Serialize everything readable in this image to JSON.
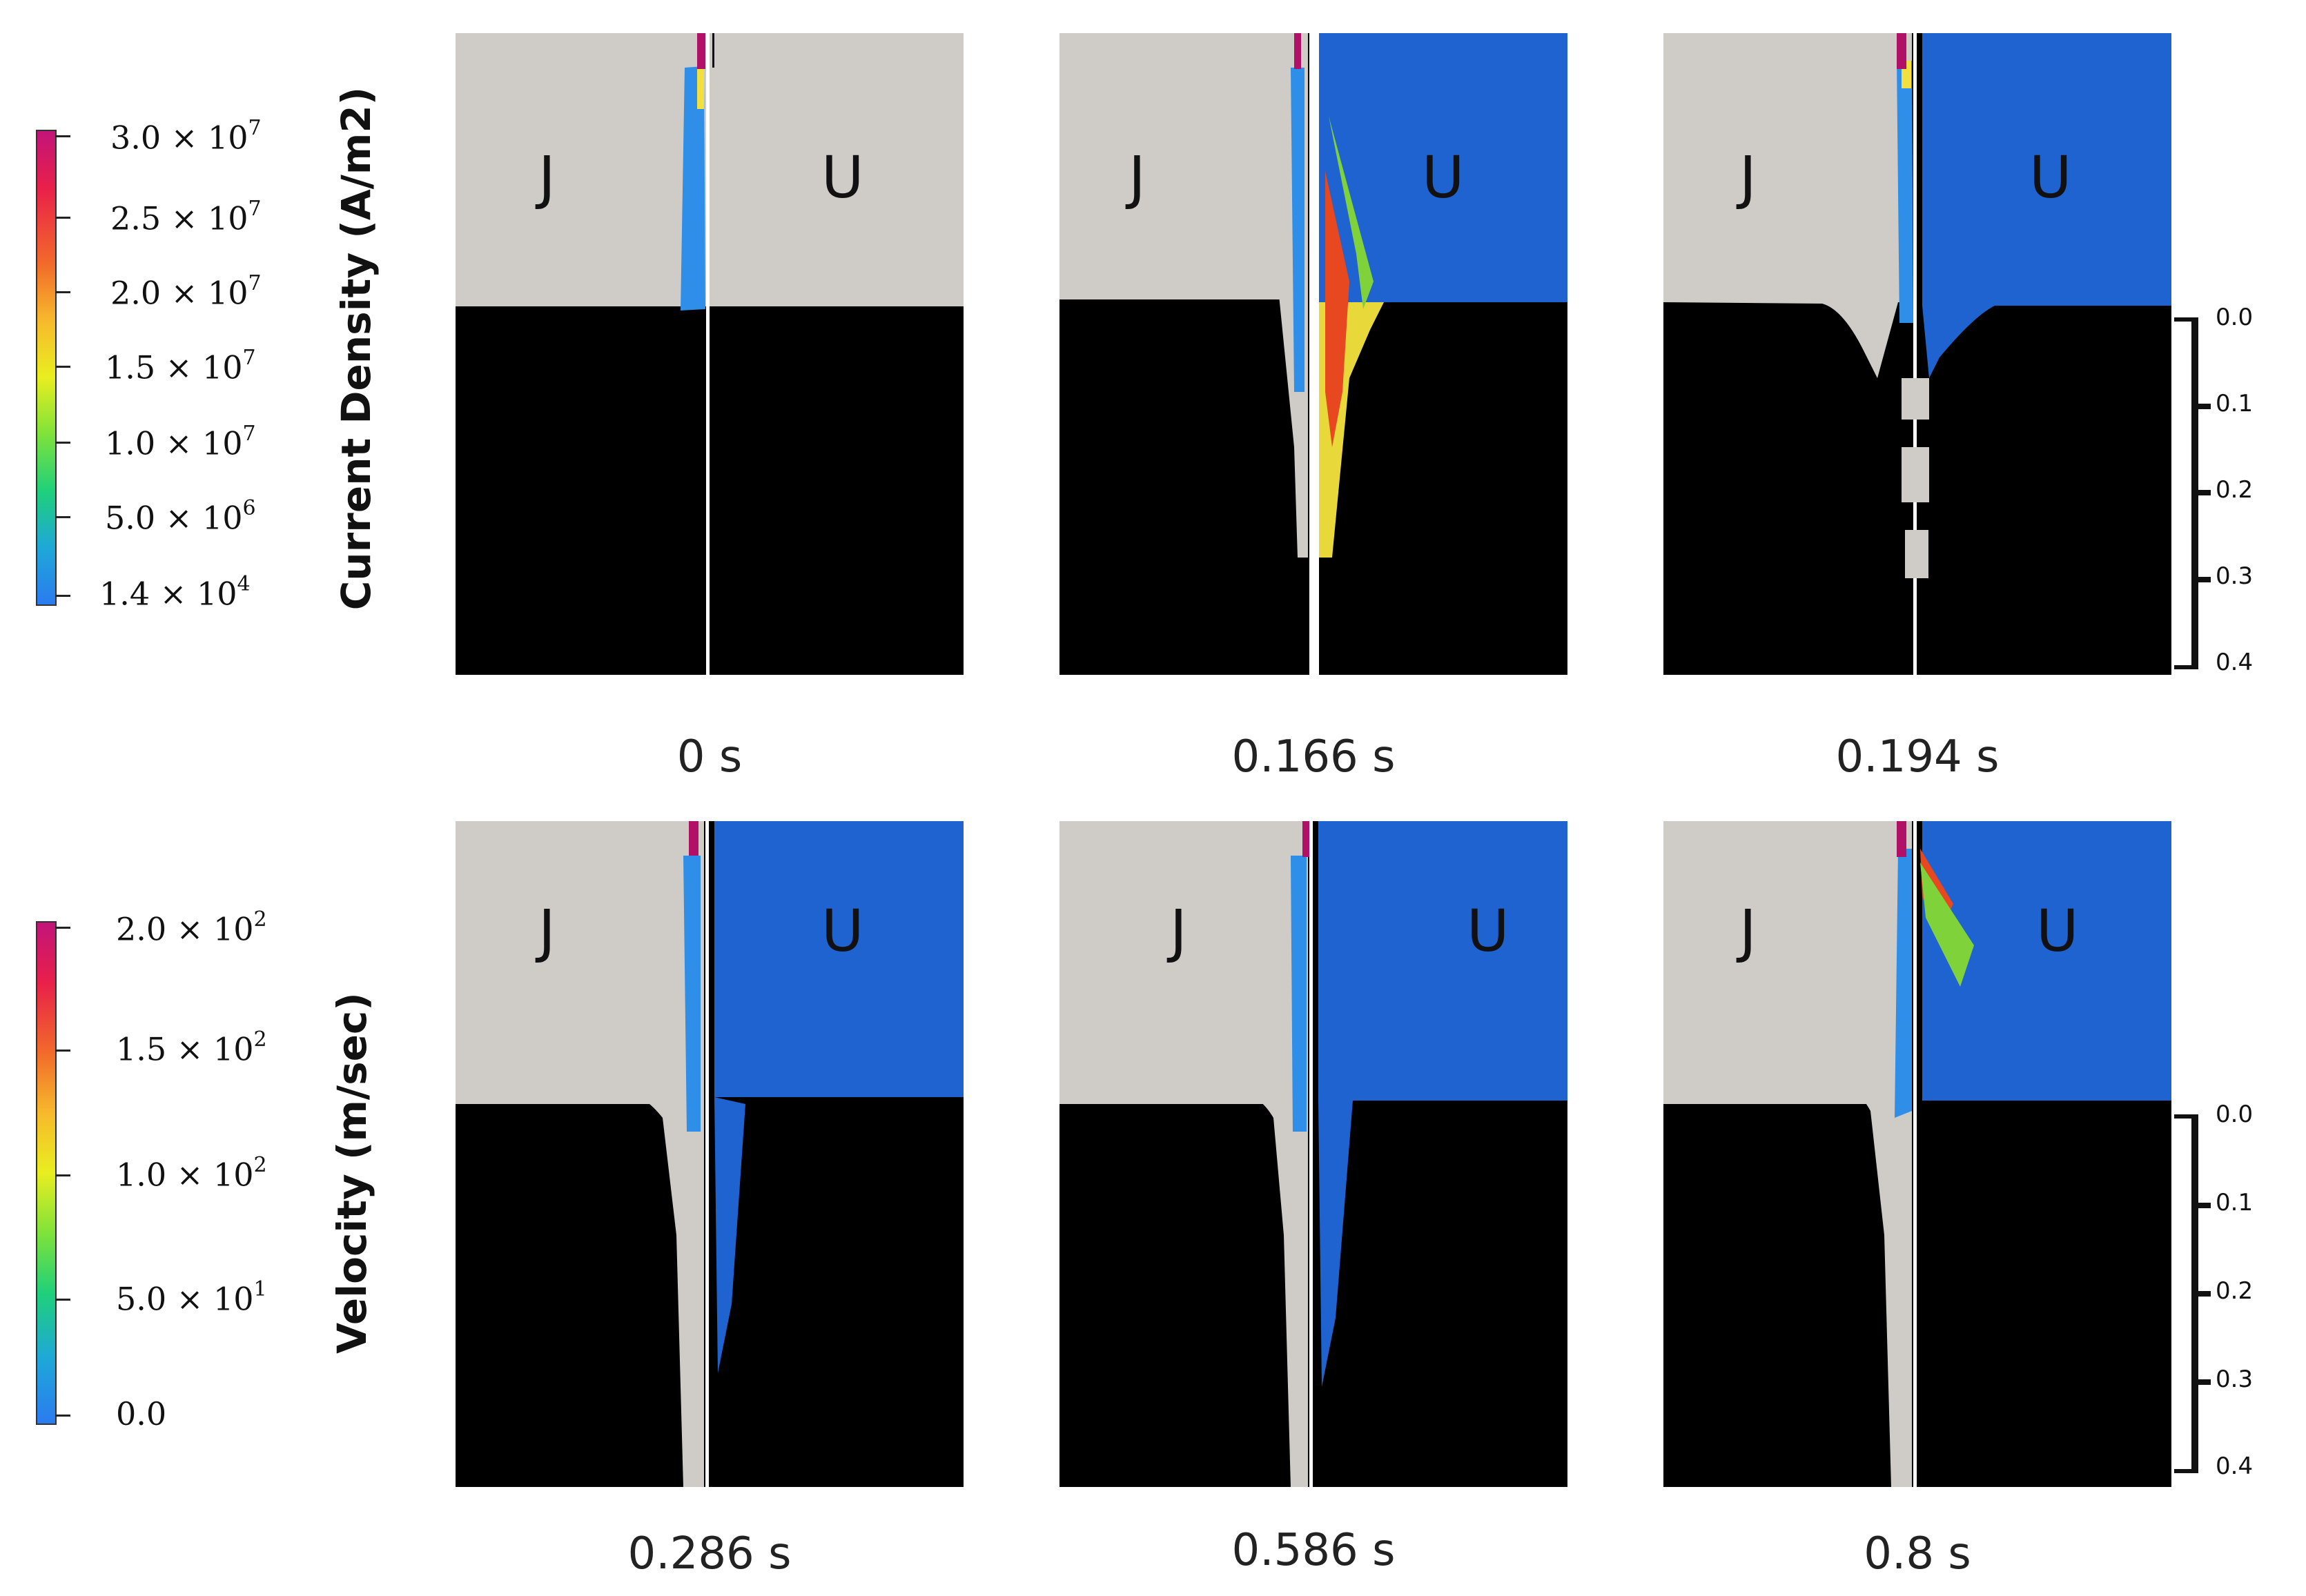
{
  "current_density": {
    "title": "Current Density (A/m2)",
    "ticks": [
      {
        "mantissa": "3.0",
        "exp": "7"
      },
      {
        "mantissa": "2.5",
        "exp": "7"
      },
      {
        "mantissa": "2.0",
        "exp": "7"
      },
      {
        "mantissa": "1.5",
        "exp": "7"
      },
      {
        "mantissa": "1.0",
        "exp": "7"
      },
      {
        "mantissa": "5.0",
        "exp": "6"
      },
      {
        "mantissa": "1.4",
        "exp": "4"
      }
    ]
  },
  "velocity": {
    "title": "Velocity (m/sec)",
    "ticks": [
      {
        "mantissa": "2.0",
        "exp": "2"
      },
      {
        "mantissa": "1.5",
        "exp": "2"
      },
      {
        "mantissa": "1.0",
        "exp": "2"
      },
      {
        "mantissa": "5.0",
        "exp": "1"
      },
      {
        "mantissa": "0.0",
        "exp": ""
      }
    ]
  },
  "times_row1": [
    "0 s",
    "0.166 s",
    "0.194 s"
  ],
  "times_row2": [
    "0.286 s",
    "0.586 s",
    "0.8 s"
  ],
  "panel_labels": {
    "left": "J",
    "right": "U"
  },
  "depth_scale": [
    "0.0",
    "0.1",
    "0.2",
    "0.3",
    "0.4"
  ],
  "multiplier_symbol": "×",
  "base": "10",
  "colors": {
    "gas": "#cfccc8",
    "metal": "#000000",
    "field_blue": "#1f63d1",
    "divider": "#ffffff"
  }
}
